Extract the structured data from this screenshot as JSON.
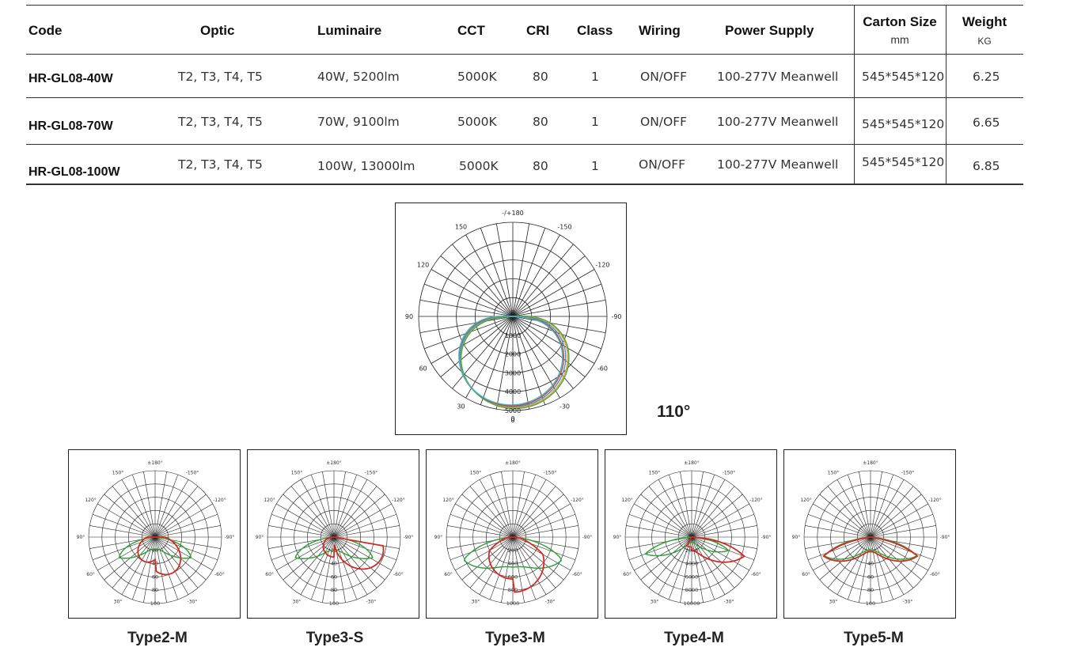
{
  "table": {
    "headers": {
      "code": "Code",
      "optic": "Optic",
      "luminaire": "Luminaire",
      "cct": "CCT",
      "cri": "CRI",
      "class": "Class",
      "wiring": "Wiring",
      "power_supply": "Power Supply",
      "carton_size": "Carton Size",
      "carton_unit": "mm",
      "weight": "Weight",
      "weight_unit": "KG"
    },
    "rows": [
      {
        "code": "HR-GL08-40W",
        "optic": "T2, T3, T4, T5",
        "luminaire": "40W, 5200lm",
        "cct": "5000K",
        "cri": "80",
        "class": "1",
        "wiring": "ON/OFF",
        "power_supply": "100-277V Meanwell",
        "carton_size": "545*545*120",
        "weight": "6.25"
      },
      {
        "code": "HR-GL08-70W",
        "optic": "T2, T3, T4, T5",
        "luminaire": "70W, 9100lm",
        "cct": "5000K",
        "cri": "80",
        "class": "1",
        "wiring": "ON/OFF",
        "power_supply": "100-277V Meanwell",
        "carton_size": "545*545*120",
        "weight": "6.65"
      },
      {
        "code": "HR-GL08-100W",
        "optic": "T2, T3, T4, T5",
        "luminaire": "100W, 13000lm",
        "cct": "5000K",
        "cri": "80",
        "class": "1",
        "wiring": "ON/OFF",
        "power_supply": "100-277V Meanwell",
        "carton_size": "545*545*120",
        "weight": "6.85"
      }
    ]
  },
  "main_chart": {
    "angle_labels": [
      "-/+180",
      "150",
      "120",
      "90",
      "60",
      "30",
      "0",
      "-30",
      "-60",
      "-90",
      "-120",
      "-150"
    ],
    "radial_labels": [
      "0",
      "1000",
      "2000",
      "3000",
      "4000",
      "5000"
    ],
    "beam_angle": "110°",
    "curve_colors": [
      "#3b8ed6",
      "#e8a020",
      "#d23c2c",
      "#4aa64a",
      "#38b8c8"
    ]
  },
  "small_charts": [
    {
      "type_label": "Type2-M",
      "radial_labels": [
        "20",
        "40",
        "60",
        "80",
        "100"
      ]
    },
    {
      "type_label": "Type3-S",
      "radial_labels": [
        "20",
        "40",
        "60",
        "80",
        "100"
      ]
    },
    {
      "type_label": "Type3-M",
      "radial_labels": [
        "200",
        "400",
        "600",
        "800",
        "1000"
      ]
    },
    {
      "type_label": "Type4-M",
      "radial_labels": [
        "2000",
        "4000",
        "6000",
        "8000",
        "10000"
      ]
    },
    {
      "type_label": "Type5-M",
      "radial_labels": [
        "20",
        "40",
        "60",
        "80",
        "100"
      ]
    }
  ],
  "small_angle_labels": [
    "±180°",
    "150°",
    "120°",
    "90°",
    "60°",
    "30°",
    "0°",
    "-30°",
    "-60°",
    "-90°",
    "-120°",
    "-150°"
  ],
  "colors": {
    "green_curve": "#2ea43a",
    "red_curve": "#d42a22",
    "grid": "#222222"
  }
}
